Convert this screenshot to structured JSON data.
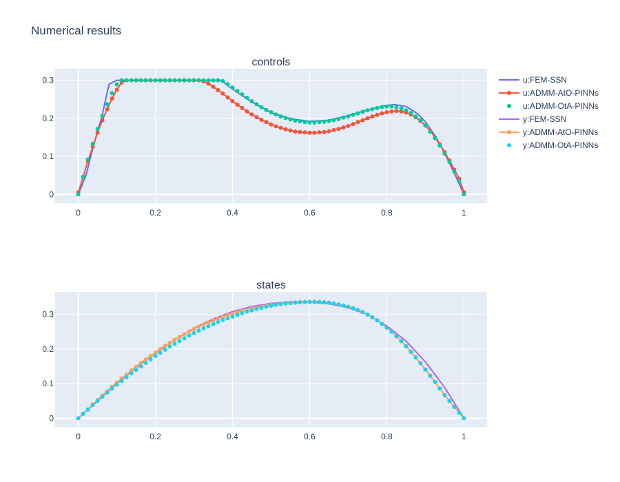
{
  "title": "Numerical results",
  "legend": [
    {
      "label": "u:FEM-SSN",
      "style": "line",
      "color": "#636efa"
    },
    {
      "label": "u:ADMM-AtO-PINNs",
      "style": "line+markers",
      "color": "#ef553b"
    },
    {
      "label": "u:ADMM-OtA-PINNs",
      "style": "markers",
      "color": "#00cc96"
    },
    {
      "label": "y:FEM-SSN",
      "style": "line",
      "color": "#ab63fa"
    },
    {
      "label": "y:ADMM-AtO-PINNs",
      "style": "line+markers",
      "color": "#ffa15a"
    },
    {
      "label": "y:ADMM-OtA-PINNs",
      "style": "markers",
      "color": "#19d3f3"
    }
  ],
  "chart_data": [
    {
      "type": "line",
      "subtitle": "controls",
      "xlim": [
        -0.06,
        1.06
      ],
      "ylim": [
        -0.023,
        0.33
      ],
      "xticks": [
        0,
        0.2,
        0.4,
        0.6,
        0.8,
        1
      ],
      "xtick_labels": [
        "0",
        "0.2",
        "0.4",
        "0.6",
        "0.8",
        "1"
      ],
      "yticks": [
        0,
        0.1,
        0.2,
        0.3
      ],
      "ytick_labels": [
        "0",
        "0.1",
        "0.2",
        "0.3"
      ],
      "grid": true,
      "series": [
        {
          "name": "u:FEM-SSN",
          "mode": "line",
          "color": "#636efa",
          "x": [
            0,
            0.02,
            0.04,
            0.06,
            0.08,
            0.1,
            0.15,
            0.2,
            0.25,
            0.3,
            0.35,
            0.37,
            0.4,
            0.45,
            0.5,
            0.55,
            0.6,
            0.65,
            0.7,
            0.75,
            0.8,
            0.82,
            0.85,
            0.88,
            0.9,
            0.92,
            0.94,
            0.96,
            0.98,
            1
          ],
          "y": [
            0,
            0.05,
            0.13,
            0.2,
            0.29,
            0.3,
            0.3,
            0.3,
            0.3,
            0.3,
            0.3,
            0.3,
            0.277,
            0.243,
            0.215,
            0.199,
            0.192,
            0.195,
            0.207,
            0.222,
            0.234,
            0.236,
            0.231,
            0.212,
            0.191,
            0.162,
            0.128,
            0.088,
            0.045,
            0
          ]
        },
        {
          "name": "u:ADMM-AtO-PINNs",
          "mode": "line+markers",
          "color": "#ef553b",
          "x": [
            0,
            0.0125,
            0.025,
            0.0375,
            0.05,
            0.0625,
            0.075,
            0.0875,
            0.1,
            0.1125,
            0.125,
            0.1375,
            0.15,
            0.1625,
            0.175,
            0.1875,
            0.2,
            0.2125,
            0.225,
            0.2375,
            0.25,
            0.2625,
            0.275,
            0.2875,
            0.3,
            0.3125,
            0.325,
            0.3375,
            0.35,
            0.3625,
            0.375,
            0.3875,
            0.4,
            0.4125,
            0.425,
            0.4375,
            0.45,
            0.4625,
            0.475,
            0.4875,
            0.5,
            0.5125,
            0.525,
            0.5375,
            0.55,
            0.5625,
            0.575,
            0.5875,
            0.6,
            0.6125,
            0.625,
            0.6375,
            0.65,
            0.6625,
            0.675,
            0.6875,
            0.7,
            0.7125,
            0.725,
            0.7375,
            0.75,
            0.7625,
            0.775,
            0.7875,
            0.8,
            0.8125,
            0.825,
            0.8375,
            0.85,
            0.8625,
            0.875,
            0.8875,
            0.9,
            0.9125,
            0.925,
            0.9375,
            0.95,
            0.9625,
            0.975,
            0.9875,
            1
          ],
          "y": [
            0.005,
            0.046,
            0.087,
            0.126,
            0.162,
            0.195,
            0.224,
            0.252,
            0.275,
            0.294,
            0.3,
            0.3,
            0.3,
            0.3,
            0.3,
            0.3,
            0.3,
            0.3,
            0.3,
            0.3,
            0.3,
            0.3,
            0.3,
            0.3,
            0.3,
            0.3,
            0.297,
            0.291,
            0.283,
            0.274,
            0.265,
            0.255,
            0.245,
            0.236,
            0.227,
            0.218,
            0.21,
            0.203,
            0.196,
            0.19,
            0.184,
            0.179,
            0.175,
            0.171,
            0.168,
            0.165,
            0.164,
            0.163,
            0.162,
            0.162,
            0.163,
            0.164,
            0.166,
            0.169,
            0.172,
            0.176,
            0.18,
            0.185,
            0.19,
            0.195,
            0.2,
            0.205,
            0.209,
            0.213,
            0.216,
            0.218,
            0.219,
            0.218,
            0.215,
            0.21,
            0.203,
            0.193,
            0.181,
            0.167,
            0.15,
            0.131,
            0.111,
            0.089,
            0.065,
            0.041,
            0.006
          ]
        },
        {
          "name": "u:ADMM-OtA-PINNs",
          "mode": "markers",
          "color": "#00cc96",
          "x": [
            0,
            0.0125,
            0.025,
            0.0375,
            0.05,
            0.0625,
            0.075,
            0.0875,
            0.1,
            0.1125,
            0.125,
            0.1375,
            0.15,
            0.1625,
            0.175,
            0.1875,
            0.2,
            0.2125,
            0.225,
            0.2375,
            0.25,
            0.2625,
            0.275,
            0.2875,
            0.3,
            0.3125,
            0.325,
            0.3375,
            0.35,
            0.3625,
            0.375,
            0.3875,
            0.4,
            0.4125,
            0.425,
            0.4375,
            0.45,
            0.4625,
            0.475,
            0.4875,
            0.5,
            0.5125,
            0.525,
            0.5375,
            0.55,
            0.5625,
            0.575,
            0.5875,
            0.6,
            0.6125,
            0.625,
            0.6375,
            0.65,
            0.6625,
            0.675,
            0.6875,
            0.7,
            0.7125,
            0.725,
            0.7375,
            0.75,
            0.7625,
            0.775,
            0.7875,
            0.8,
            0.8125,
            0.825,
            0.8375,
            0.85,
            0.8625,
            0.875,
            0.8875,
            0.9,
            0.9125,
            0.925,
            0.9375,
            0.95,
            0.9625,
            0.975,
            0.9875,
            1
          ],
          "y": [
            0,
            0.045,
            0.092,
            0.133,
            0.172,
            0.206,
            0.237,
            0.266,
            0.289,
            0.3,
            0.3,
            0.3,
            0.3,
            0.3,
            0.3,
            0.3,
            0.3,
            0.3,
            0.3,
            0.3,
            0.3,
            0.3,
            0.3,
            0.3,
            0.3,
            0.3,
            0.3,
            0.3,
            0.3,
            0.3,
            0.298,
            0.29,
            0.281,
            0.272,
            0.263,
            0.254,
            0.245,
            0.237,
            0.229,
            0.222,
            0.216,
            0.21,
            0.205,
            0.201,
            0.197,
            0.194,
            0.192,
            0.19,
            0.189,
            0.189,
            0.19,
            0.191,
            0.193,
            0.195,
            0.198,
            0.202,
            0.205,
            0.209,
            0.213,
            0.217,
            0.221,
            0.224,
            0.227,
            0.23,
            0.231,
            0.231,
            0.23,
            0.226,
            0.221,
            0.214,
            0.205,
            0.195,
            0.182,
            0.165,
            0.148,
            0.128,
            0.107,
            0.085,
            0.06,
            0.035,
            0
          ]
        }
      ]
    },
    {
      "type": "line",
      "subtitle": "states",
      "xlim": [
        -0.06,
        1.06
      ],
      "ylim": [
        -0.025,
        0.365
      ],
      "xticks": [
        0,
        0.2,
        0.4,
        0.6,
        0.8,
        1
      ],
      "xtick_labels": [
        "0",
        "0.2",
        "0.4",
        "0.6",
        "0.8",
        "1"
      ],
      "yticks": [
        0,
        0.1,
        0.2,
        0.3
      ],
      "ytick_labels": [
        "0",
        "0.1",
        "0.2",
        "0.3"
      ],
      "grid": true,
      "series": [
        {
          "name": "y:FEM-SSN",
          "mode": "line",
          "color": "#ab63fa",
          "x": [
            0,
            0.05,
            0.1,
            0.15,
            0.2,
            0.25,
            0.3,
            0.35,
            0.4,
            0.45,
            0.5,
            0.55,
            0.6,
            0.65,
            0.7,
            0.75,
            0.8,
            0.85,
            0.9,
            0.95,
            1
          ],
          "y": [
            0,
            0.05,
            0.1,
            0.146,
            0.189,
            0.227,
            0.26,
            0.287,
            0.308,
            0.323,
            0.332,
            0.336,
            0.336,
            0.331,
            0.32,
            0.3,
            0.267,
            0.223,
            0.163,
            0.089,
            0
          ]
        },
        {
          "name": "y:ADMM-AtO-PINNs",
          "mode": "line+markers",
          "color": "#ffa15a",
          "x": [
            0,
            0.0125,
            0.025,
            0.0375,
            0.05,
            0.0625,
            0.075,
            0.0875,
            0.1,
            0.1125,
            0.125,
            0.1375,
            0.15,
            0.1625,
            0.175,
            0.1875,
            0.2,
            0.2125,
            0.225,
            0.2375,
            0.25,
            0.2625,
            0.275,
            0.2875,
            0.3,
            0.3125,
            0.325,
            0.3375,
            0.35,
            0.3625,
            0.375,
            0.3875,
            0.4,
            0.4125,
            0.425,
            0.4375,
            0.45,
            0.4625,
            0.475,
            0.4875,
            0.5,
            0.5125,
            0.525,
            0.5375,
            0.55,
            0.5625,
            0.575,
            0.5875,
            0.6,
            0.6125,
            0.625,
            0.6375,
            0.65,
            0.6625,
            0.675,
            0.6875,
            0.7,
            0.7125,
            0.725,
            0.7375,
            0.75,
            0.7625,
            0.775,
            0.7875,
            0.8,
            0.8125,
            0.825,
            0.8375,
            0.85,
            0.8625,
            0.875,
            0.8875,
            0.9,
            0.9125,
            0.925,
            0.9375,
            0.95,
            0.9625,
            0.975,
            0.9875,
            1
          ],
          "y": [
            0,
            0.013,
            0.026,
            0.04,
            0.053,
            0.066,
            0.078,
            0.091,
            0.103,
            0.115,
            0.126,
            0.138,
            0.149,
            0.16,
            0.17,
            0.18,
            0.19,
            0.2,
            0.209,
            0.218,
            0.227,
            0.235,
            0.243,
            0.251,
            0.258,
            0.265,
            0.271,
            0.277,
            0.283,
            0.288,
            0.293,
            0.298,
            0.302,
            0.306,
            0.31,
            0.313,
            0.317,
            0.32,
            0.322,
            0.325,
            0.327,
            0.329,
            0.331,
            0.333,
            0.334,
            0.335,
            0.336,
            0.336,
            0.337,
            0.337,
            0.336,
            0.335,
            0.334,
            0.332,
            0.329,
            0.326,
            0.322,
            0.318,
            0.313,
            0.307,
            0.3,
            0.292,
            0.283,
            0.273,
            0.262,
            0.25,
            0.237,
            0.223,
            0.208,
            0.192,
            0.176,
            0.159,
            0.141,
            0.123,
            0.105,
            0.086,
            0.067,
            0.05,
            0.033,
            0.016,
            0
          ]
        },
        {
          "name": "y:ADMM-OtA-PINNs",
          "mode": "markers",
          "color": "#19d3f3",
          "x": [
            0,
            0.0125,
            0.025,
            0.0375,
            0.05,
            0.0625,
            0.075,
            0.0875,
            0.1,
            0.1125,
            0.125,
            0.1375,
            0.15,
            0.1625,
            0.175,
            0.1875,
            0.2,
            0.2125,
            0.225,
            0.2375,
            0.25,
            0.2625,
            0.275,
            0.2875,
            0.3,
            0.3125,
            0.325,
            0.3375,
            0.35,
            0.3625,
            0.375,
            0.3875,
            0.4,
            0.4125,
            0.425,
            0.4375,
            0.45,
            0.4625,
            0.475,
            0.4875,
            0.5,
            0.5125,
            0.525,
            0.5375,
            0.55,
            0.5625,
            0.575,
            0.5875,
            0.6,
            0.6125,
            0.625,
            0.6375,
            0.65,
            0.6625,
            0.675,
            0.6875,
            0.7,
            0.7125,
            0.725,
            0.7375,
            0.75,
            0.7625,
            0.775,
            0.7875,
            0.8,
            0.8125,
            0.825,
            0.8375,
            0.85,
            0.8625,
            0.875,
            0.8875,
            0.9,
            0.9125,
            0.925,
            0.9375,
            0.95,
            0.9625,
            0.975,
            0.9875,
            1
          ],
          "y": [
            0,
            0.013,
            0.025,
            0.038,
            0.05,
            0.062,
            0.074,
            0.086,
            0.097,
            0.108,
            0.119,
            0.13,
            0.14,
            0.15,
            0.16,
            0.17,
            0.18,
            0.189,
            0.198,
            0.207,
            0.215,
            0.223,
            0.231,
            0.239,
            0.246,
            0.253,
            0.26,
            0.266,
            0.272,
            0.278,
            0.284,
            0.289,
            0.294,
            0.299,
            0.304,
            0.308,
            0.312,
            0.316,
            0.319,
            0.322,
            0.325,
            0.328,
            0.33,
            0.332,
            0.333,
            0.334,
            0.335,
            0.336,
            0.336,
            0.336,
            0.336,
            0.335,
            0.334,
            0.332,
            0.329,
            0.326,
            0.322,
            0.318,
            0.313,
            0.307,
            0.3,
            0.292,
            0.283,
            0.273,
            0.262,
            0.25,
            0.237,
            0.223,
            0.208,
            0.192,
            0.176,
            0.159,
            0.141,
            0.123,
            0.105,
            0.086,
            0.067,
            0.05,
            0.033,
            0.016,
            0
          ]
        }
      ]
    }
  ]
}
